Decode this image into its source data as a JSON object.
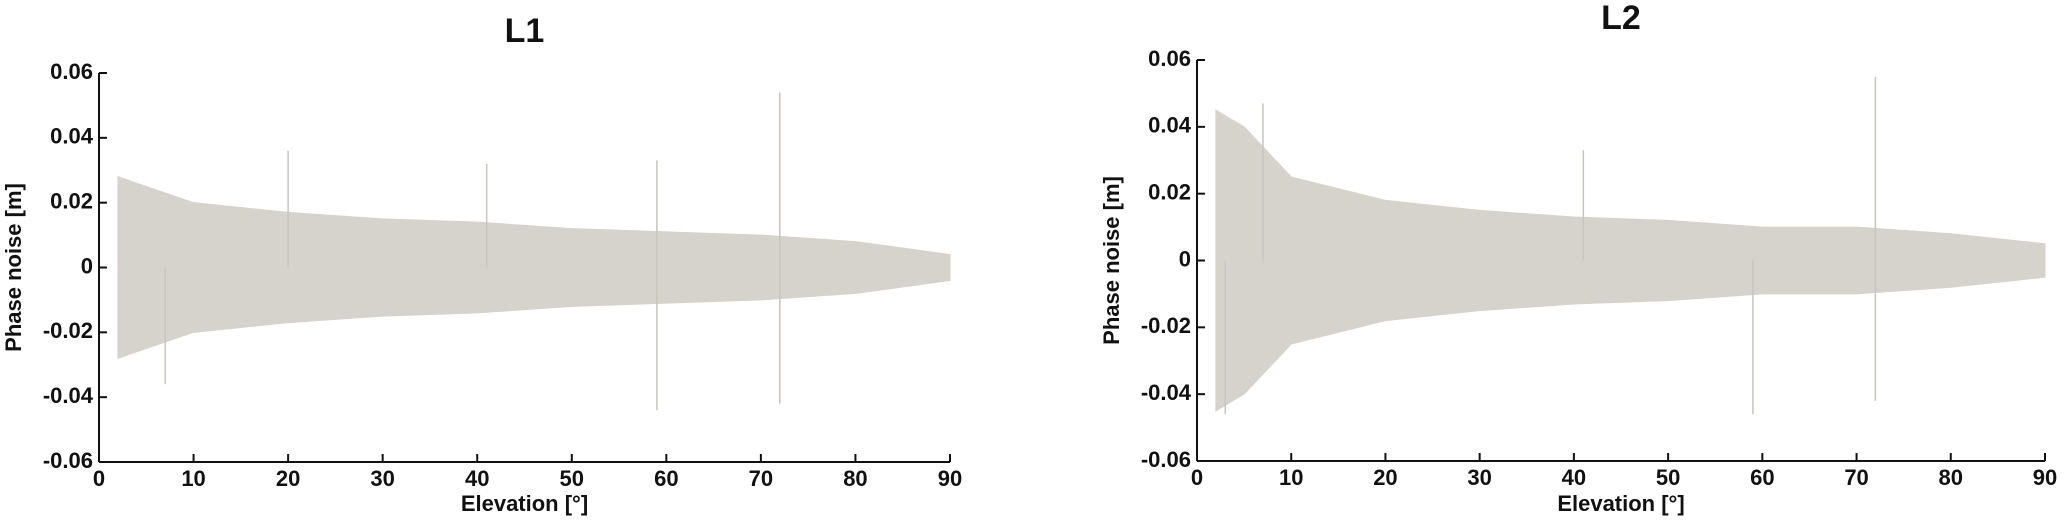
{
  "chart_data": [
    {
      "type": "band",
      "title": "L1",
      "x_label": "Elevation [°]",
      "y_label": "Phase noise [m]",
      "color": "#d6d2cc",
      "x": [
        2,
        5,
        10,
        20,
        30,
        40,
        50,
        60,
        70,
        80,
        90
      ],
      "upper": [
        0.028,
        0.025,
        0.02,
        0.017,
        0.015,
        0.014,
        0.012,
        0.011,
        0.01,
        0.008,
        0.004
      ],
      "lower": [
        -0.028,
        -0.025,
        -0.02,
        -0.017,
        -0.015,
        -0.014,
        -0.012,
        -0.011,
        -0.01,
        -0.008,
        -0.004
      ],
      "spikes": {
        "x": [
          7,
          20,
          41,
          59,
          59,
          72,
          72
        ],
        "values": [
          -0.036,
          0.036,
          0.032,
          0.033,
          -0.044,
          0.054,
          -0.042
        ]
      },
      "xlim": [
        0,
        90
      ],
      "xticks": [
        0,
        10,
        20,
        30,
        40,
        50,
        60,
        70,
        80,
        90
      ],
      "ylim": [
        -0.06,
        0.06
      ],
      "yticks": [
        -0.06,
        -0.04,
        -0.02,
        0,
        0.02,
        0.04,
        0.06
      ]
    },
    {
      "type": "band",
      "title": "L2",
      "x_label": "Elevation [°]",
      "y_label": "Phase noise [m]",
      "color": "#d6d2cc",
      "x": [
        2,
        5,
        10,
        20,
        30,
        40,
        50,
        60,
        70,
        80,
        90
      ],
      "upper": [
        0.045,
        0.04,
        0.025,
        0.018,
        0.015,
        0.013,
        0.012,
        0.01,
        0.01,
        0.008,
        0.005
      ],
      "lower": [
        -0.045,
        -0.04,
        -0.025,
        -0.018,
        -0.015,
        -0.013,
        -0.012,
        -0.01,
        -0.01,
        -0.008,
        -0.005
      ],
      "spikes": {
        "x": [
          3,
          7,
          41,
          59,
          72,
          72
        ],
        "values": [
          -0.046,
          0.047,
          0.033,
          -0.046,
          0.055,
          -0.042
        ]
      },
      "xlim": [
        0,
        90
      ],
      "xticks": [
        0,
        10,
        20,
        30,
        40,
        50,
        60,
        70,
        80,
        90
      ],
      "ylim": [
        -0.06,
        0.06
      ],
      "yticks": [
        -0.06,
        -0.04,
        -0.02,
        0,
        0.02,
        0.04,
        0.06
      ]
    }
  ]
}
